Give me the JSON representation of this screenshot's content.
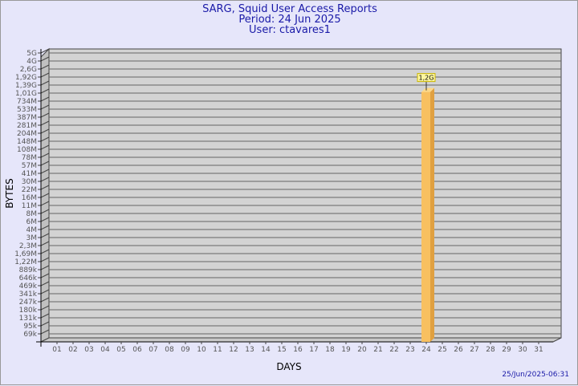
{
  "chart_data": {
    "type": "bar",
    "title": "SARG, Squid User Access Reports",
    "subtitle_period": "Period: 24 Jun 2025",
    "subtitle_user": "User: ctavares1",
    "xlabel": "DAYS",
    "ylabel": "BYTES",
    "y_scale": "log",
    "grid": true,
    "y_tick_labels": [
      "5G",
      "4G",
      "2,6G",
      "1,92G",
      "1,39G",
      "1,01G",
      "734M",
      "533M",
      "387M",
      "281M",
      "204M",
      "148M",
      "108M",
      "78M",
      "57M",
      "41M",
      "30M",
      "22M",
      "16M",
      "11M",
      "8M",
      "6M",
      "4M",
      "3M",
      "2,3M",
      "1,69M",
      "1,22M",
      "889k",
      "646k",
      "469k",
      "341k",
      "247k",
      "180k",
      "131k",
      "95k",
      "69k"
    ],
    "y_tick_values": [
      5000000000.0,
      4000000000.0,
      2600000000.0,
      1920000000.0,
      1390000000.0,
      1010000000.0,
      734000000.0,
      533000000.0,
      387000000.0,
      281000000.0,
      204000000.0,
      148000000.0,
      108000000.0,
      78000000.0,
      57000000.0,
      41000000.0,
      30000000.0,
      22000000.0,
      16000000.0,
      11000000.0,
      8000000.0,
      6000000.0,
      4000000.0,
      3000000.0,
      2300000.0,
      1690000.0,
      1220000.0,
      889000,
      646000,
      469000,
      341000,
      247000,
      180000,
      131000,
      95000,
      69000
    ],
    "categories": [
      "01",
      "02",
      "03",
      "04",
      "05",
      "06",
      "07",
      "08",
      "09",
      "10",
      "11",
      "12",
      "13",
      "14",
      "15",
      "16",
      "17",
      "18",
      "19",
      "20",
      "21",
      "22",
      "23",
      "24",
      "25",
      "26",
      "27",
      "28",
      "29",
      "30",
      "31"
    ],
    "series": [
      {
        "values": [
          null,
          null,
          null,
          null,
          null,
          null,
          null,
          null,
          null,
          null,
          null,
          null,
          null,
          null,
          null,
          null,
          null,
          null,
          null,
          null,
          null,
          null,
          null,
          1200000000.0,
          null,
          null,
          null,
          null,
          null,
          null,
          null
        ],
        "labels": {
          "24": "1,2G"
        }
      }
    ],
    "bar_color": "#f8c060",
    "timestamp": "25/Jun/2025-06:31"
  }
}
